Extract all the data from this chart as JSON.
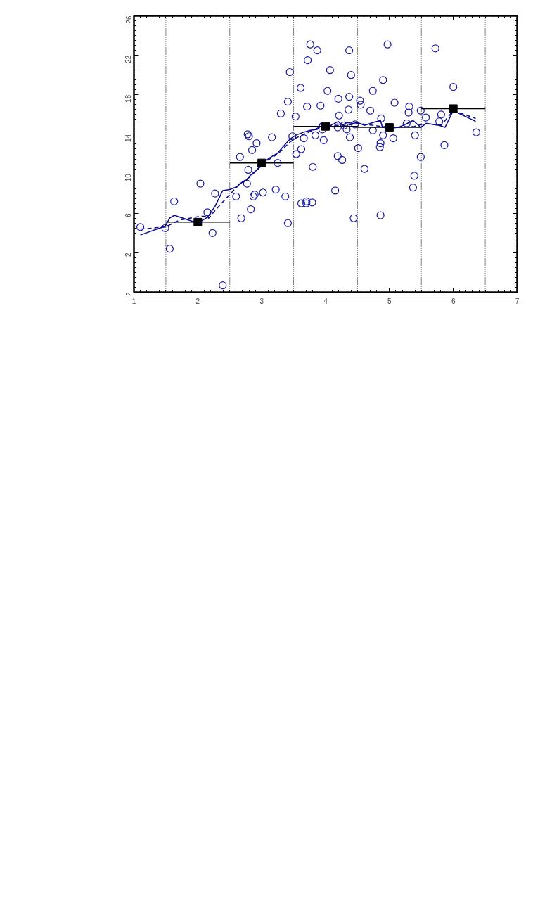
{
  "chart_data": {
    "type": "scatter",
    "xlim": [
      1,
      7
    ],
    "ylim": [
      -2,
      26
    ],
    "xticks": [
      1,
      2,
      3,
      4,
      5,
      6,
      7
    ],
    "yticks": [
      {
        "value": -2,
        "label": "−2"
      },
      2,
      6,
      10,
      14,
      18,
      22,
      26
    ],
    "grid": false,
    "ref_lines": [
      {
        "axis": "x",
        "value": 1.5,
        "color": "#000000",
        "line_style": "dotted"
      },
      {
        "axis": "x",
        "value": 2.5,
        "color": "#000000",
        "line_style": "dotted"
      },
      {
        "axis": "x",
        "value": 3.5,
        "color": "#000000",
        "line_style": "dotted"
      },
      {
        "axis": "x",
        "value": 4.5,
        "color": "#000000",
        "line_style": "dotted"
      },
      {
        "axis": "x",
        "value": 5.5,
        "color": "#000000",
        "line_style": "dotted"
      },
      {
        "axis": "x",
        "value": 6.5,
        "color": "#000000",
        "line_style": "dotted"
      }
    ],
    "series": [
      {
        "marker": "circle",
        "color": "#1a1aa6",
        "x": [
          1.1,
          1.49,
          1.56,
          1.63,
          2.04,
          2.15,
          2.23,
          2.27,
          2.39,
          2.6,
          2.68,
          2.66,
          2.78,
          2.8,
          2.92,
          2.85,
          2.79,
          2.77,
          2.89,
          2.87,
          2.83,
          3.02,
          3.16,
          3.25,
          3.22,
          3.37,
          3.41,
          3.3,
          3.41,
          3.44,
          3.53,
          3.48,
          3.54,
          3.62,
          3.61,
          3.66,
          3.72,
          3.76,
          3.87,
          3.71,
          3.84,
          3.8,
          3.62,
          3.7,
          3.7,
          3.79,
          3.92,
          3.97,
          3.95,
          4.03,
          4.07,
          4.15,
          4.19,
          4.26,
          4.21,
          4.19,
          4.2,
          4.37,
          4.4,
          4.37,
          4.36,
          4.29,
          4.33,
          4.38,
          4.44,
          4.51,
          4.54,
          4.55,
          4.46,
          4.61,
          4.74,
          4.7,
          4.74,
          4.86,
          4.85,
          4.86,
          4.9,
          4.9,
          4.87,
          4.97,
          5.06,
          5.08,
          5.27,
          5.31,
          5.3,
          5.4,
          5.39,
          5.37,
          5.49,
          5.49,
          5.57,
          5.72,
          5.81,
          5.78,
          5.86,
          6.0,
          6.36
        ],
        "values": [
          4.6,
          4.5,
          2.4,
          7.2,
          9.0,
          6.1,
          4.0,
          8.0,
          -1.3,
          7.7,
          5.5,
          11.7,
          14.0,
          13.8,
          13.1,
          12.4,
          10.4,
          9.0,
          7.9,
          7.7,
          6.4,
          8.1,
          13.7,
          11.1,
          8.4,
          7.7,
          5.0,
          16.1,
          17.3,
          20.3,
          15.8,
          13.8,
          12.0,
          12.5,
          18.7,
          13.6,
          21.5,
          23.1,
          22.5,
          16.8,
          13.9,
          10.7,
          7.0,
          7.2,
          7.0,
          7.1,
          16.9,
          13.4,
          14.5,
          18.4,
          20.5,
          8.3,
          11.8,
          11.4,
          15.9,
          14.7,
          17.6,
          22.5,
          20.0,
          17.8,
          16.5,
          14.9,
          14.5,
          13.7,
          5.5,
          12.6,
          17.4,
          17.0,
          15.0,
          10.5,
          18.4,
          16.4,
          14.4,
          5.8,
          12.7,
          13.1,
          13.9,
          19.5,
          15.6,
          23.1,
          13.6,
          17.2,
          15.1,
          16.8,
          16.2,
          13.9,
          9.8,
          8.6,
          16.4,
          11.7,
          15.7,
          22.7,
          16.0,
          15.3,
          12.9,
          18.8,
          14.2
        ]
      },
      {
        "type": "line",
        "line_style": "solid",
        "color": "#000000",
        "x": [
          1.5,
          2.5,
          null,
          2.5,
          3.5,
          null,
          3.5,
          4.5,
          null,
          4.5,
          5.5,
          null,
          5.5,
          6.5
        ],
        "values": [
          5.1,
          5.1,
          null,
          11.1,
          11.1,
          null,
          14.8,
          14.8,
          null,
          14.7,
          14.7,
          null,
          16.6,
          16.6
        ]
      },
      {
        "type": "line",
        "line_style": "solid",
        "color": "#0a0a8c",
        "x": [
          1.1,
          1.49,
          1.56,
          1.63,
          2.0,
          2.15,
          2.27,
          2.39,
          2.5,
          2.62,
          2.66,
          2.77,
          2.8,
          2.87,
          2.91,
          2.98,
          3.0,
          3.12,
          3.25,
          3.37,
          3.44,
          3.53,
          3.65,
          3.76,
          3.87,
          3.92,
          3.97,
          4.08,
          4.2,
          4.26,
          4.33,
          4.43,
          4.5,
          4.61,
          4.75,
          4.86,
          4.89,
          5.0,
          5.14,
          5.28,
          5.37,
          5.49,
          5.58,
          5.78,
          5.87,
          6.0,
          6.35
        ],
        "values": [
          3.8,
          4.7,
          5.5,
          5.8,
          5.0,
          5.6,
          6.7,
          8.3,
          8.4,
          8.7,
          9.0,
          9.4,
          9.7,
          10.1,
          10.3,
          10.8,
          11.0,
          11.6,
          12.1,
          13.0,
          13.5,
          13.9,
          14.2,
          14.4,
          14.5,
          15.1,
          14.7,
          14.9,
          15.3,
          14.9,
          15.2,
          15.1,
          15.2,
          14.9,
          15.2,
          15.4,
          14.7,
          14.6,
          14.7,
          15.1,
          15.4,
          14.7,
          15.1,
          14.9,
          14.7,
          16.4,
          15.3
        ]
      },
      {
        "type": "line",
        "line_style": "dashed",
        "color": "#0a0a8c",
        "x": [
          1.1,
          1.49,
          1.71,
          2.04,
          2.15,
          2.17,
          2.3,
          2.5,
          2.66,
          2.8,
          2.98,
          3.0,
          3.25,
          3.44,
          3.53,
          3.76,
          3.94,
          4.15,
          4.33,
          4.5,
          4.75,
          4.86,
          5.14,
          5.39,
          5.57,
          5.81,
          6.0,
          6.35
        ],
        "values": [
          4.4,
          4.6,
          5.3,
          5.7,
          5.7,
          5.5,
          6.5,
          7.9,
          9.0,
          9.6,
          10.7,
          11.0,
          12.0,
          13.2,
          13.6,
          14.3,
          14.8,
          14.9,
          14.9,
          15.1,
          14.9,
          14.8,
          14.7,
          14.8,
          15.1,
          14.9,
          16.4,
          15.6
        ]
      },
      {
        "marker": "square",
        "color": "#000000",
        "x": [
          2,
          3,
          4,
          5,
          6
        ],
        "values": [
          5.1,
          11.1,
          14.8,
          14.7,
          16.6
        ]
      }
    ]
  }
}
